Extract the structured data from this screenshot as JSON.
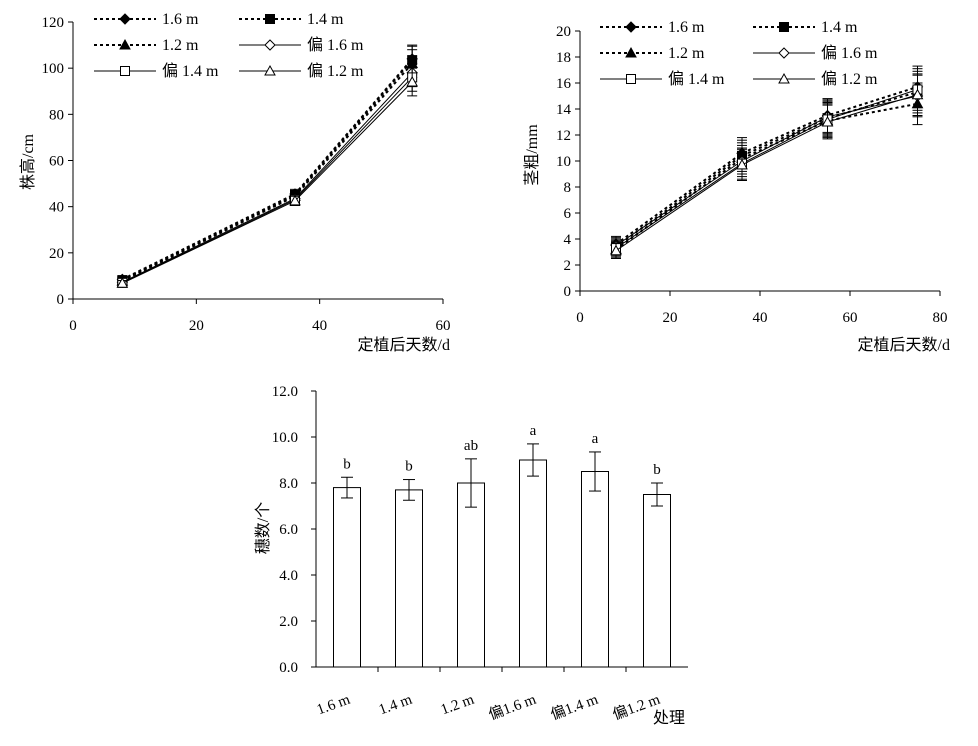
{
  "chart_data": [
    {
      "type": "line",
      "xlabel": "定植后天数/d",
      "ylabel": "株高/cm",
      "xlim": [
        0,
        60
      ],
      "ylim": [
        0,
        120
      ],
      "xticks": [
        0,
        20,
        40,
        60
      ],
      "yticks": [
        0,
        20,
        40,
        60,
        80,
        100,
        120
      ],
      "grid": false,
      "legend_position": "top",
      "x": [
        8,
        36,
        55
      ],
      "series": [
        {
          "name": "1.6 m",
          "values": [
            8.5,
            45.5,
            104
          ],
          "error": [
            1.2,
            2.0,
            6
          ],
          "style": "dotted",
          "marker": "diamond-filled"
        },
        {
          "name": "1.4 m",
          "values": [
            8.2,
            45,
            103.5
          ],
          "error": [
            1.2,
            2.0,
            6
          ],
          "style": "dotted",
          "marker": "square-filled"
        },
        {
          "name": "1.2 m",
          "values": [
            7.8,
            44.5,
            102
          ],
          "error": [
            1.2,
            2.0,
            6
          ],
          "style": "dotted",
          "marker": "triangle-filled"
        },
        {
          "name": "偏 1.6 m",
          "values": [
            7.3,
            43.5,
            98
          ],
          "error": [
            1.2,
            2.0,
            6
          ],
          "style": "solid",
          "marker": "diamond-open"
        },
        {
          "name": "偏 1.4 m",
          "values": [
            7.0,
            43,
            96
          ],
          "error": [
            1.2,
            2.0,
            6
          ],
          "style": "solid",
          "marker": "square-open"
        },
        {
          "name": "偏 1.2 m",
          "values": [
            6.8,
            42.5,
            94
          ],
          "error": [
            1.2,
            2.0,
            6
          ],
          "style": "solid",
          "marker": "triangle-open"
        }
      ]
    },
    {
      "type": "line",
      "xlabel": "定植后天数/d",
      "ylabel": "茎粗/mm",
      "xlim": [
        0,
        80
      ],
      "ylim": [
        0,
        20
      ],
      "xticks": [
        0,
        20,
        40,
        60,
        80
      ],
      "yticks": [
        0,
        2,
        4,
        6,
        8,
        10,
        12,
        14,
        16,
        18,
        20
      ],
      "grid": false,
      "legend_position": "top",
      "x": [
        8,
        36,
        55,
        75
      ],
      "series": [
        {
          "name": "1.6 m",
          "values": [
            3.6,
            10.6,
            13.5,
            15.7
          ],
          "error": [
            0.6,
            1.2,
            1.3,
            1.6
          ],
          "style": "dotted",
          "marker": "diamond-filled"
        },
        {
          "name": "1.4 m",
          "values": [
            3.4,
            10.4,
            13.3,
            15.3
          ],
          "error": [
            0.6,
            1.2,
            1.3,
            1.6
          ],
          "style": "dotted",
          "marker": "square-filled"
        },
        {
          "name": "1.2 m",
          "values": [
            3.2,
            10.2,
            13.1,
            14.4
          ],
          "error": [
            0.6,
            1.2,
            1.3,
            1.6
          ],
          "style": "dotted",
          "marker": "triangle-filled"
        },
        {
          "name": "偏 1.6 m",
          "values": [
            3.5,
            10.0,
            13.4,
            15.0
          ],
          "error": [
            0.6,
            1.2,
            1.3,
            1.6
          ],
          "style": "solid",
          "marker": "diamond-open"
        },
        {
          "name": "偏 1.4 m",
          "values": [
            3.3,
            9.8,
            13.2,
            15.5
          ],
          "error": [
            0.6,
            1.2,
            1.3,
            1.6
          ],
          "style": "solid",
          "marker": "square-open"
        },
        {
          "name": "偏 1.2 m",
          "values": [
            3.1,
            9.7,
            13.0,
            15.1
          ],
          "error": [
            0.6,
            1.2,
            1.3,
            1.6
          ],
          "style": "solid",
          "marker": "triangle-open"
        }
      ]
    },
    {
      "type": "bar",
      "xlabel": "处理",
      "ylabel": "穗数/个",
      "ylim": [
        0,
        12
      ],
      "yticks": [
        "0.0",
        "2.0",
        "4.0",
        "6.0",
        "8.0",
        "10.0",
        "12.0"
      ],
      "grid": false,
      "categories": [
        "1.6 m",
        "1.4 m",
        "1.2 m",
        "偏1.6 m",
        "偏1.4 m",
        "偏1.2 m"
      ],
      "values": [
        7.8,
        7.7,
        8.0,
        9.0,
        8.5,
        7.5
      ],
      "error": [
        0.45,
        0.45,
        1.05,
        0.7,
        0.85,
        0.5
      ],
      "annotations": [
        "b",
        "b",
        "ab",
        "a",
        "a",
        "b"
      ]
    }
  ]
}
